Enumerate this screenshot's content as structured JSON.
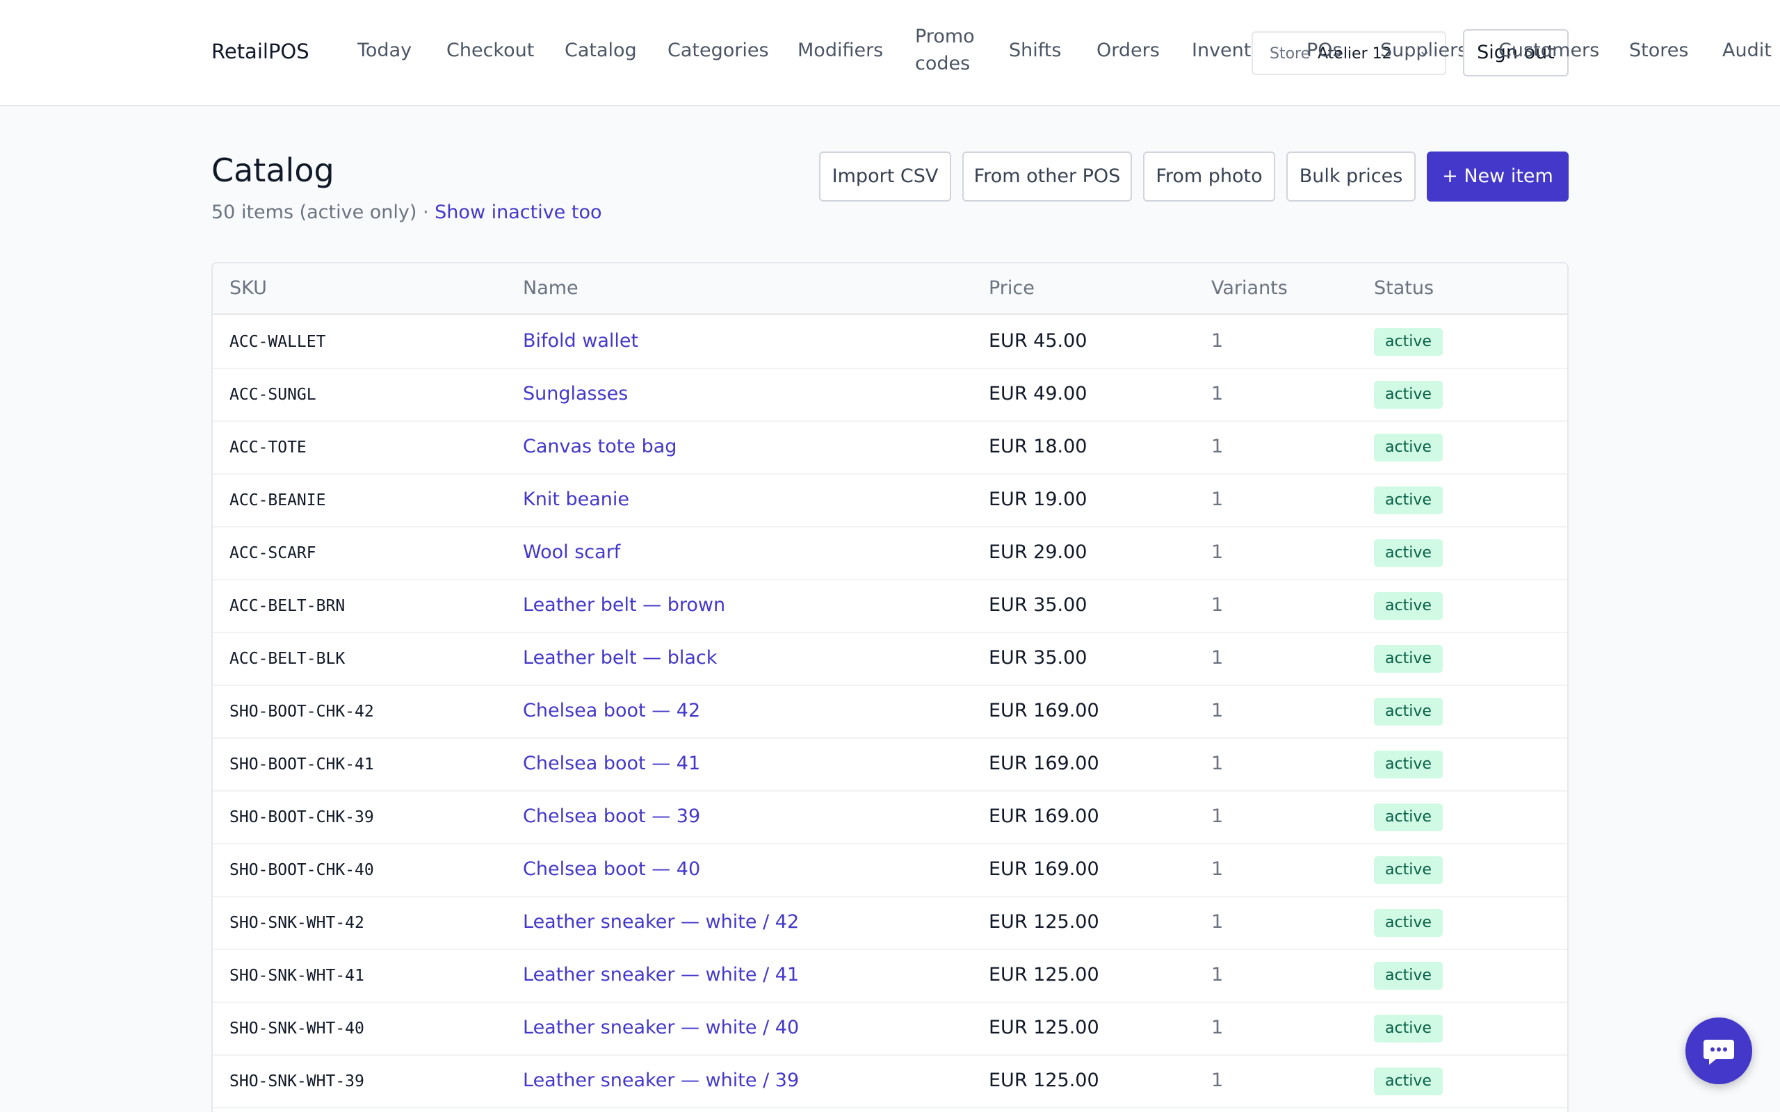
{
  "header": {
    "brand": "RetailPOS",
    "nav": [
      {
        "label": "Today"
      },
      {
        "label": "Checkout"
      },
      {
        "label": "Catalog"
      },
      {
        "label": "Categories"
      },
      {
        "label": "Modifiers"
      },
      {
        "label": "Promo codes"
      },
      {
        "label": "Shifts"
      },
      {
        "label": "Orders"
      },
      {
        "label": "Inventory"
      },
      {
        "label": "POs"
      },
      {
        "label": "Suppliers"
      },
      {
        "label": "Customers"
      },
      {
        "label": "Stores"
      },
      {
        "label": "Audit"
      }
    ],
    "store_label": "Store",
    "store_value": "Atelier 12",
    "signout": "Sign out"
  },
  "page": {
    "title": "Catalog",
    "count_text": "50 items (active only) · ",
    "show_inactive": "Show inactive too",
    "buttons": {
      "import_csv": "Import CSV",
      "from_other_pos": "From other POS",
      "from_photo": "From photo",
      "bulk_prices": "Bulk prices",
      "new_item": "+ New item"
    }
  },
  "table": {
    "headers": {
      "sku": "SKU",
      "name": "Name",
      "price": "Price",
      "variants": "Variants",
      "status": "Status"
    },
    "rows": [
      {
        "sku": "ACC-WALLET",
        "name": "Bifold wallet",
        "price": "EUR 45.00",
        "variants": "1",
        "status": "active"
      },
      {
        "sku": "ACC-SUNGL",
        "name": "Sunglasses",
        "price": "EUR 49.00",
        "variants": "1",
        "status": "active"
      },
      {
        "sku": "ACC-TOTE",
        "name": "Canvas tote bag",
        "price": "EUR 18.00",
        "variants": "1",
        "status": "active"
      },
      {
        "sku": "ACC-BEANIE",
        "name": "Knit beanie",
        "price": "EUR 19.00",
        "variants": "1",
        "status": "active"
      },
      {
        "sku": "ACC-SCARF",
        "name": "Wool scarf",
        "price": "EUR 29.00",
        "variants": "1",
        "status": "active"
      },
      {
        "sku": "ACC-BELT-BRN",
        "name": "Leather belt — brown",
        "price": "EUR 35.00",
        "variants": "1",
        "status": "active"
      },
      {
        "sku": "ACC-BELT-BLK",
        "name": "Leather belt — black",
        "price": "EUR 35.00",
        "variants": "1",
        "status": "active"
      },
      {
        "sku": "SHO-BOOT-CHK-42",
        "name": "Chelsea boot — 42",
        "price": "EUR 169.00",
        "variants": "1",
        "status": "active"
      },
      {
        "sku": "SHO-BOOT-CHK-41",
        "name": "Chelsea boot — 41",
        "price": "EUR 169.00",
        "variants": "1",
        "status": "active"
      },
      {
        "sku": "SHO-BOOT-CHK-39",
        "name": "Chelsea boot — 39",
        "price": "EUR 169.00",
        "variants": "1",
        "status": "active"
      },
      {
        "sku": "SHO-BOOT-CHK-40",
        "name": "Chelsea boot — 40",
        "price": "EUR 169.00",
        "variants": "1",
        "status": "active"
      },
      {
        "sku": "SHO-SNK-WHT-42",
        "name": "Leather sneaker — white / 42",
        "price": "EUR 125.00",
        "variants": "1",
        "status": "active"
      },
      {
        "sku": "SHO-SNK-WHT-41",
        "name": "Leather sneaker — white / 41",
        "price": "EUR 125.00",
        "variants": "1",
        "status": "active"
      },
      {
        "sku": "SHO-SNK-WHT-40",
        "name": "Leather sneaker — white / 40",
        "price": "EUR 125.00",
        "variants": "1",
        "status": "active"
      },
      {
        "sku": "SHO-SNK-WHT-39",
        "name": "Leather sneaker — white / 39",
        "price": "EUR 125.00",
        "variants": "1",
        "status": "active"
      }
    ]
  },
  "colors": {
    "accent": "#4338ca",
    "status_active_bg": "#d1fae5",
    "status_active_text": "#065f46"
  },
  "icons": {
    "chat": "chat-bubble-icon"
  }
}
